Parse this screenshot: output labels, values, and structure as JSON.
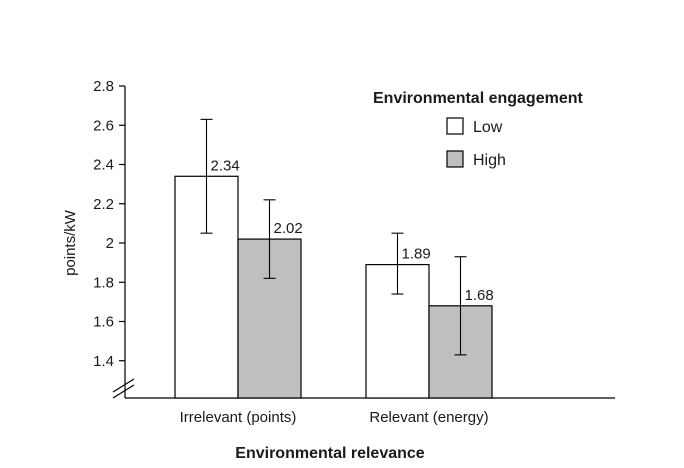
{
  "chart_data": {
    "type": "bar",
    "title": "",
    "xlabel": "Environmental relevance",
    "ylabel": "points/kW",
    "categories": [
      "Irrelevant (points)",
      "Relevant (energy)"
    ],
    "ylim": [
      1.2,
      2.8
    ],
    "yticks": [
      "1.4",
      "1.6",
      "1.8",
      "2",
      "2.2",
      "2.4",
      "2.6",
      "2.8"
    ],
    "axis_break": true,
    "legend": {
      "title": "Environmental engagement",
      "position": "top-right"
    },
    "series": [
      {
        "name": "Low",
        "color": "#ffffff",
        "values": [
          2.34,
          1.89
        ],
        "value_labels": [
          "2.34",
          "1.89"
        ],
        "error_low": [
          2.05,
          1.74
        ],
        "error_high": [
          2.63,
          2.05
        ]
      },
      {
        "name": "High",
        "color": "#bfbfbf",
        "values": [
          2.02,
          1.68
        ],
        "value_labels": [
          "2.02",
          "1.68"
        ],
        "error_low": [
          1.82,
          1.43
        ],
        "error_high": [
          2.22,
          1.93
        ]
      }
    ],
    "grid": false
  }
}
